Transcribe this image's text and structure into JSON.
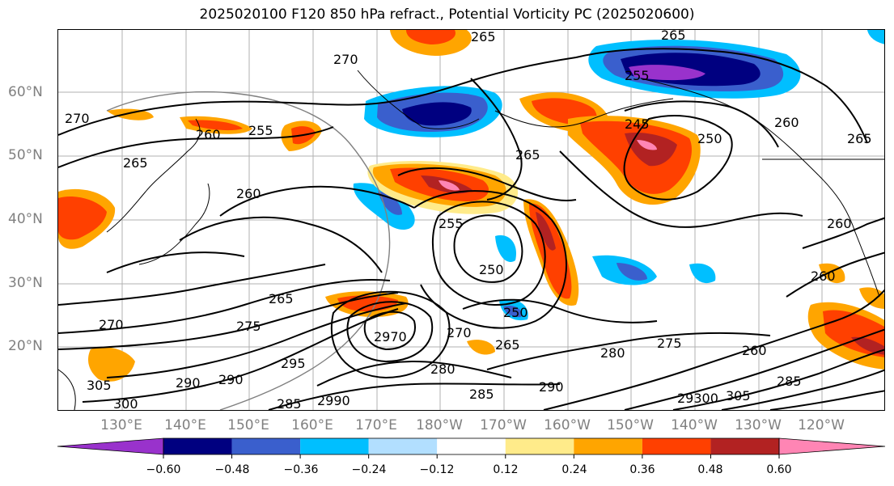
{
  "title": "2025020100 F120 850 hPa refract., Potential Vorticity PC (2025020600)",
  "lat_labels": [
    "60°N",
    "50°N",
    "40°N",
    "30°N",
    "20°N"
  ],
  "lon_labels": [
    "130°E",
    "140°E",
    "150°E",
    "160°E",
    "170°E",
    "180°W",
    "170°W",
    "160°W",
    "150°W",
    "140°W",
    "130°W",
    "120°W"
  ],
  "contour_labels": [
    "270",
    "265",
    "265",
    "255",
    "245",
    "250",
    "260",
    "265",
    "270",
    "260",
    "255",
    "265",
    "260",
    "260",
    "265",
    "250",
    "255",
    "250",
    "260",
    "275",
    "265",
    "270",
    "270",
    "2970",
    "265",
    "280",
    "280",
    "275",
    "260",
    "295",
    "290",
    "290",
    "285",
    "2990",
    "285",
    "290",
    "300",
    "305",
    "29300",
    "305",
    "285"
  ],
  "colorbar": {
    "colors": [
      "#9932cc",
      "#000080",
      "#3a5fcd",
      "#00bfff",
      "#b2dfff",
      "#ffffff",
      "#ffeb8a",
      "#ffa500",
      "#ff4000",
      "#b22222",
      "#ff85b4"
    ],
    "tick_labels": [
      "−0.60",
      "−0.48",
      "−0.36",
      "−0.24",
      "−0.12",
      "0.12",
      "0.24",
      "0.36",
      "0.48",
      "0.60"
    ]
  },
  "fill_colors": {
    "neg_strong": "#000080",
    "neg_mid": "#3a5fcd",
    "neg_light": "#00bfff",
    "neg_pale": "#b2dfff",
    "neg_extreme": "#9932cc",
    "pos_pale": "#ffeb8a",
    "pos_light": "#ffa500",
    "pos_mid": "#ff4000",
    "pos_strong": "#b22222",
    "pos_extreme": "#ff85b4"
  }
}
